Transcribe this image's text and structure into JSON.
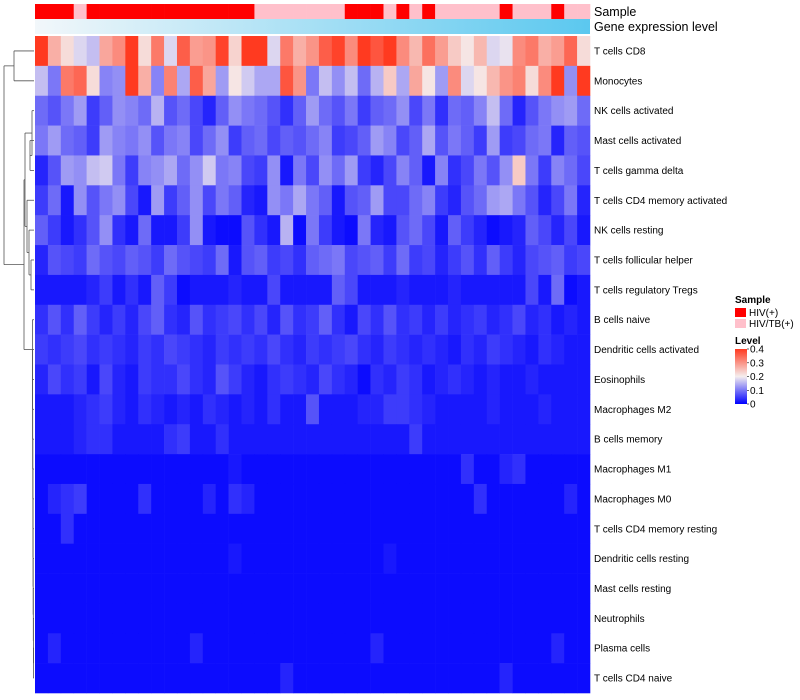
{
  "chart_data": {
    "type": "heatmap",
    "annotation_rows": [
      "Sample",
      "Gene expression level"
    ],
    "rows": [
      "T cells CD8",
      "Monocytes",
      "NK cells activated",
      "Mast cells activated",
      "T cells gamma delta",
      "T cells CD4 memory activated",
      "NK cells resting",
      "T cells follicular helper",
      "T cells regulatory  Tregs",
      "B cells naive",
      "Dendritic cells activated",
      "Eosinophils",
      "Macrophages M2",
      "B cells memory",
      "Macrophages M1",
      "Macrophages M0",
      "T cells CD4 memory resting",
      "Dendritic cells resting",
      "Mast cells resting",
      "Neutrophils",
      "Plasma cells",
      "T cells CD4 naive"
    ],
    "sample_groups": [
      "HIV(+)",
      "HIV(+)",
      "HIV(+)",
      "HIV/TB(+)",
      "HIV(+)",
      "HIV(+)",
      "HIV(+)",
      "HIV(+)",
      "HIV(+)",
      "HIV(+)",
      "HIV(+)",
      "HIV(+)",
      "HIV(+)",
      "HIV(+)",
      "HIV(+)",
      "HIV(+)",
      "HIV(+)",
      "HIV/TB(+)",
      "HIV/TB(+)",
      "HIV/TB(+)",
      "HIV/TB(+)",
      "HIV/TB(+)",
      "HIV/TB(+)",
      "HIV/TB(+)",
      "HIV(+)",
      "HIV(+)",
      "HIV(+)",
      "HIV/TB(+)",
      "HIV(+)",
      "HIV/TB(+)",
      "HIV(+)",
      "HIV/TB(+)",
      "HIV/TB(+)",
      "HIV/TB(+)",
      "HIV/TB(+)",
      "HIV/TB(+)",
      "HIV(+)",
      "HIV/TB(+)",
      "HIV/TB(+)",
      "HIV/TB(+)",
      "HIV(+)",
      "HIV/TB(+)",
      "HIV/TB(+)"
    ],
    "matrix": [
      [
        0.4,
        0.27,
        0.22,
        0.18,
        0.16,
        0.28,
        0.31,
        0.4,
        0.22,
        0.33,
        0.18,
        0.36,
        0.29,
        0.3,
        0.39,
        0.23,
        0.4,
        0.4,
        0.18,
        0.33,
        0.27,
        0.3,
        0.36,
        0.39,
        0.31,
        0.4,
        0.37,
        0.4,
        0.31,
        0.26,
        0.34,
        0.29,
        0.24,
        0.21,
        0.26,
        0.18,
        0.19,
        0.31,
        0.33,
        0.27,
        0.29,
        0.35,
        0.22
      ],
      [
        0.16,
        0.1,
        0.33,
        0.35,
        0.22,
        0.11,
        0.12,
        0.4,
        0.27,
        0.11,
        0.32,
        0.14,
        0.36,
        0.28,
        0.13,
        0.21,
        0.17,
        0.14,
        0.14,
        0.37,
        0.3,
        0.1,
        0.16,
        0.12,
        0.16,
        0.09,
        0.15,
        0.24,
        0.14,
        0.28,
        0.21,
        0.13,
        0.31,
        0.18,
        0.21,
        0.26,
        0.3,
        0.32,
        0.22,
        0.31,
        0.4,
        0.12,
        0.4
      ],
      [
        0.09,
        0.07,
        0.1,
        0.13,
        0.05,
        0.08,
        0.12,
        0.11,
        0.09,
        0.15,
        0.07,
        0.09,
        0.06,
        0.03,
        0.08,
        0.12,
        0.1,
        0.09,
        0.07,
        0.04,
        0.08,
        0.13,
        0.09,
        0.07,
        0.1,
        0.05,
        0.08,
        0.09,
        0.12,
        0.06,
        0.1,
        0.04,
        0.09,
        0.08,
        0.11,
        0.16,
        0.09,
        0.03,
        0.07,
        0.1,
        0.12,
        0.13,
        0.09
      ],
      [
        0.1,
        0.13,
        0.09,
        0.08,
        0.05,
        0.13,
        0.11,
        0.1,
        0.12,
        0.07,
        0.1,
        0.11,
        0.06,
        0.09,
        0.12,
        0.05,
        0.08,
        0.09,
        0.06,
        0.08,
        0.07,
        0.09,
        0.11,
        0.05,
        0.06,
        0.08,
        0.13,
        0.11,
        0.06,
        0.08,
        0.14,
        0.07,
        0.1,
        0.08,
        0.05,
        0.13,
        0.05,
        0.06,
        0.09,
        0.1,
        0.03,
        0.08,
        0.07
      ],
      [
        0.03,
        0.07,
        0.13,
        0.12,
        0.16,
        0.17,
        0.1,
        0.05,
        0.11,
        0.12,
        0.14,
        0.09,
        0.12,
        0.17,
        0.1,
        0.11,
        0.06,
        0.05,
        0.12,
        0.02,
        0.1,
        0.06,
        0.12,
        0.09,
        0.13,
        0.05,
        0.03,
        0.06,
        0.11,
        0.08,
        0.02,
        0.11,
        0.04,
        0.06,
        0.1,
        0.07,
        0.12,
        0.24,
        0.1,
        0.05,
        0.11,
        0.09,
        0.06
      ],
      [
        0.05,
        0.09,
        0.02,
        0.12,
        0.07,
        0.1,
        0.12,
        0.06,
        0.02,
        0.13,
        0.05,
        0.08,
        0.12,
        0.06,
        0.1,
        0.08,
        0.03,
        0.02,
        0.12,
        0.1,
        0.14,
        0.1,
        0.08,
        0.02,
        0.07,
        0.08,
        0.13,
        0.06,
        0.06,
        0.09,
        0.11,
        0.05,
        0.03,
        0.07,
        0.09,
        0.13,
        0.14,
        0.1,
        0.07,
        0.03,
        0.06,
        0.1,
        0.03
      ],
      [
        0.08,
        0.05,
        0.02,
        0.04,
        0.07,
        0.12,
        0.04,
        0.02,
        0.09,
        0.02,
        0.02,
        0.05,
        0.12,
        0.02,
        0.01,
        0.01,
        0.07,
        0.04,
        0.02,
        0.15,
        0.01,
        0.1,
        0.05,
        0.02,
        0.01,
        0.1,
        0.03,
        0.02,
        0.07,
        0.09,
        0.06,
        0.02,
        0.08,
        0.05,
        0.03,
        0.01,
        0.02,
        0.03,
        0.08,
        0.06,
        0.03,
        0.06,
        0.02
      ],
      [
        0.03,
        0.07,
        0.06,
        0.05,
        0.09,
        0.07,
        0.06,
        0.08,
        0.07,
        0.05,
        0.09,
        0.07,
        0.06,
        0.05,
        0.09,
        0.02,
        0.07,
        0.08,
        0.05,
        0.06,
        0.04,
        0.08,
        0.09,
        0.1,
        0.06,
        0.07,
        0.08,
        0.05,
        0.09,
        0.05,
        0.06,
        0.03,
        0.05,
        0.07,
        0.04,
        0.08,
        0.05,
        0.03,
        0.06,
        0.07,
        0.08,
        0.05,
        0.06
      ],
      [
        0.02,
        0.02,
        0.02,
        0.02,
        0.03,
        0.05,
        0.02,
        0.04,
        0.02,
        0.08,
        0.05,
        0.01,
        0.02,
        0.02,
        0.02,
        0.03,
        0.02,
        0.02,
        0.06,
        0.02,
        0.02,
        0.02,
        0.02,
        0.08,
        0.06,
        0.02,
        0.02,
        0.02,
        0.03,
        0.02,
        0.02,
        0.02,
        0.03,
        0.02,
        0.02,
        0.02,
        0.02,
        0.02,
        0.06,
        0.02,
        0.09,
        0.01,
        0.02
      ],
      [
        0.04,
        0.07,
        0.04,
        0.08,
        0.05,
        0.03,
        0.05,
        0.03,
        0.06,
        0.08,
        0.04,
        0.03,
        0.07,
        0.04,
        0.05,
        0.06,
        0.04,
        0.06,
        0.03,
        0.07,
        0.04,
        0.05,
        0.08,
        0.04,
        0.02,
        0.06,
        0.04,
        0.07,
        0.04,
        0.05,
        0.03,
        0.05,
        0.03,
        0.04,
        0.05,
        0.03,
        0.04,
        0.06,
        0.03,
        0.04,
        0.02,
        0.03,
        0.02
      ],
      [
        0.05,
        0.04,
        0.05,
        0.06,
        0.04,
        0.05,
        0.04,
        0.03,
        0.05,
        0.04,
        0.06,
        0.05,
        0.04,
        0.03,
        0.05,
        0.04,
        0.05,
        0.04,
        0.06,
        0.04,
        0.03,
        0.05,
        0.04,
        0.05,
        0.06,
        0.04,
        0.03,
        0.05,
        0.04,
        0.03,
        0.04,
        0.03,
        0.02,
        0.04,
        0.03,
        0.05,
        0.04,
        0.03,
        0.02,
        0.04,
        0.03,
        0.02,
        0.02
      ],
      [
        0.03,
        0.06,
        0.04,
        0.05,
        0.02,
        0.06,
        0.03,
        0.02,
        0.05,
        0.04,
        0.04,
        0.06,
        0.04,
        0.03,
        0.07,
        0.05,
        0.03,
        0.02,
        0.04,
        0.05,
        0.04,
        0.03,
        0.06,
        0.04,
        0.03,
        0.01,
        0.04,
        0.03,
        0.05,
        0.04,
        0.02,
        0.03,
        0.04,
        0.03,
        0.02,
        0.03,
        0.02,
        0.02,
        0.03,
        0.02,
        0.02,
        0.02,
        0.02
      ],
      [
        0.02,
        0.02,
        0.02,
        0.03,
        0.04,
        0.05,
        0.03,
        0.02,
        0.04,
        0.03,
        0.02,
        0.03,
        0.02,
        0.04,
        0.03,
        0.02,
        0.03,
        0.02,
        0.04,
        0.02,
        0.02,
        0.07,
        0.02,
        0.02,
        0.02,
        0.03,
        0.03,
        0.05,
        0.05,
        0.04,
        0.03,
        0.02,
        0.02,
        0.02,
        0.02,
        0.03,
        0.02,
        0.02,
        0.02,
        0.03,
        0.02,
        0.02,
        0.02
      ],
      [
        0.02,
        0.02,
        0.02,
        0.03,
        0.04,
        0.04,
        0.02,
        0.02,
        0.02,
        0.02,
        0.04,
        0.05,
        0.02,
        0.02,
        0.04,
        0.02,
        0.02,
        0.02,
        0.02,
        0.02,
        0.02,
        0.02,
        0.02,
        0.02,
        0.02,
        0.02,
        0.02,
        0.02,
        0.02,
        0.05,
        0.02,
        0.02,
        0.02,
        0.02,
        0.02,
        0.02,
        0.02,
        0.02,
        0.02,
        0.02,
        0.02,
        0.02,
        0.02
      ],
      [
        0.01,
        0.01,
        0.01,
        0.01,
        0.01,
        0.01,
        0.01,
        0.01,
        0.01,
        0.01,
        0.01,
        0.01,
        0.01,
        0.01,
        0.01,
        0.02,
        0.01,
        0.01,
        0.01,
        0.01,
        0.01,
        0.01,
        0.01,
        0.01,
        0.01,
        0.01,
        0.01,
        0.01,
        0.01,
        0.01,
        0.01,
        0.01,
        0.01,
        0.04,
        0.01,
        0.01,
        0.03,
        0.04,
        0.01,
        0.01,
        0.01,
        0.01,
        0.01
      ],
      [
        0.01,
        0.03,
        0.04,
        0.05,
        0.01,
        0.01,
        0.01,
        0.01,
        0.04,
        0.01,
        0.01,
        0.01,
        0.01,
        0.03,
        0.01,
        0.04,
        0.03,
        0.01,
        0.01,
        0.01,
        0.01,
        0.01,
        0.01,
        0.01,
        0.01,
        0.01,
        0.01,
        0.01,
        0.01,
        0.01,
        0.01,
        0.01,
        0.01,
        0.01,
        0.04,
        0.01,
        0.01,
        0.01,
        0.01,
        0.01,
        0.01,
        0.03,
        0.01
      ],
      [
        0.01,
        0.01,
        0.04,
        0.01,
        0.01,
        0.01,
        0.01,
        0.01,
        0.01,
        0.01,
        0.01,
        0.01,
        0.01,
        0.01,
        0.01,
        0.01,
        0.01,
        0.01,
        0.01,
        0.01,
        0.01,
        0.01,
        0.01,
        0.01,
        0.01,
        0.01,
        0.01,
        0.01,
        0.01,
        0.01,
        0.01,
        0.01,
        0.01,
        0.01,
        0.01,
        0.01,
        0.01,
        0.01,
        0.01,
        0.01,
        0.01,
        0.01,
        0.01
      ],
      [
        0.01,
        0.01,
        0.01,
        0.01,
        0.01,
        0.01,
        0.01,
        0.01,
        0.01,
        0.01,
        0.01,
        0.01,
        0.01,
        0.01,
        0.01,
        0.02,
        0.01,
        0.01,
        0.01,
        0.01,
        0.01,
        0.01,
        0.01,
        0.01,
        0.01,
        0.01,
        0.01,
        0.02,
        0.01,
        0.01,
        0.01,
        0.01,
        0.01,
        0.01,
        0.01,
        0.01,
        0.01,
        0.01,
        0.01,
        0.01,
        0.01,
        0.01,
        0.01
      ],
      [
        0.01,
        0.01,
        0.01,
        0.01,
        0.01,
        0.01,
        0.01,
        0.01,
        0.01,
        0.01,
        0.01,
        0.01,
        0.01,
        0.01,
        0.01,
        0.01,
        0.01,
        0.01,
        0.01,
        0.01,
        0.01,
        0.01,
        0.01,
        0.01,
        0.01,
        0.01,
        0.01,
        0.01,
        0.01,
        0.01,
        0.01,
        0.01,
        0.01,
        0.01,
        0.01,
        0.01,
        0.01,
        0.01,
        0.01,
        0.01,
        0.01,
        0.01,
        0.01
      ],
      [
        0.01,
        0.01,
        0.01,
        0.01,
        0.01,
        0.01,
        0.01,
        0.01,
        0.01,
        0.01,
        0.01,
        0.01,
        0.01,
        0.01,
        0.01,
        0.01,
        0.01,
        0.01,
        0.01,
        0.01,
        0.01,
        0.01,
        0.01,
        0.01,
        0.01,
        0.01,
        0.01,
        0.01,
        0.01,
        0.01,
        0.01,
        0.01,
        0.01,
        0.01,
        0.01,
        0.01,
        0.01,
        0.01,
        0.01,
        0.01,
        0.01,
        0.01,
        0.01
      ],
      [
        0.01,
        0.03,
        0.01,
        0.01,
        0.01,
        0.01,
        0.01,
        0.01,
        0.01,
        0.01,
        0.01,
        0.01,
        0.03,
        0.01,
        0.01,
        0.01,
        0.01,
        0.01,
        0.01,
        0.01,
        0.01,
        0.01,
        0.01,
        0.01,
        0.01,
        0.01,
        0.03,
        0.01,
        0.01,
        0.01,
        0.01,
        0.01,
        0.01,
        0.01,
        0.01,
        0.01,
        0.01,
        0.01,
        0.01,
        0.01,
        0.03,
        0.01,
        0.01
      ],
      [
        0.01,
        0.01,
        0.01,
        0.01,
        0.01,
        0.01,
        0.01,
        0.01,
        0.01,
        0.01,
        0.01,
        0.01,
        0.01,
        0.01,
        0.01,
        0.01,
        0.01,
        0.01,
        0.01,
        0.03,
        0.01,
        0.01,
        0.01,
        0.01,
        0.01,
        0.01,
        0.01,
        0.01,
        0.01,
        0.01,
        0.01,
        0.01,
        0.01,
        0.01,
        0.01,
        0.01,
        0.03,
        0.01,
        0.01,
        0.01,
        0.01,
        0.01,
        0.01
      ]
    ],
    "legend": {
      "sample_title": "Sample",
      "sample_entries": [
        "HIV(+)",
        "HIV/TB(+)"
      ],
      "sample_colors": [
        "#ff0000",
        "#ffc0cb"
      ],
      "level_title": "Level",
      "level_ticks": [
        "0.4",
        "0.3",
        "0.2",
        "0.1",
        "0"
      ],
      "level_range": [
        0,
        0.4
      ],
      "level_colors": [
        "#0000ff",
        "#f5eeee",
        "#ff3a20"
      ]
    },
    "expression_gradient": [
      "#f2f7fa",
      "#5bc8ef"
    ],
    "dendrogram": "rows"
  }
}
